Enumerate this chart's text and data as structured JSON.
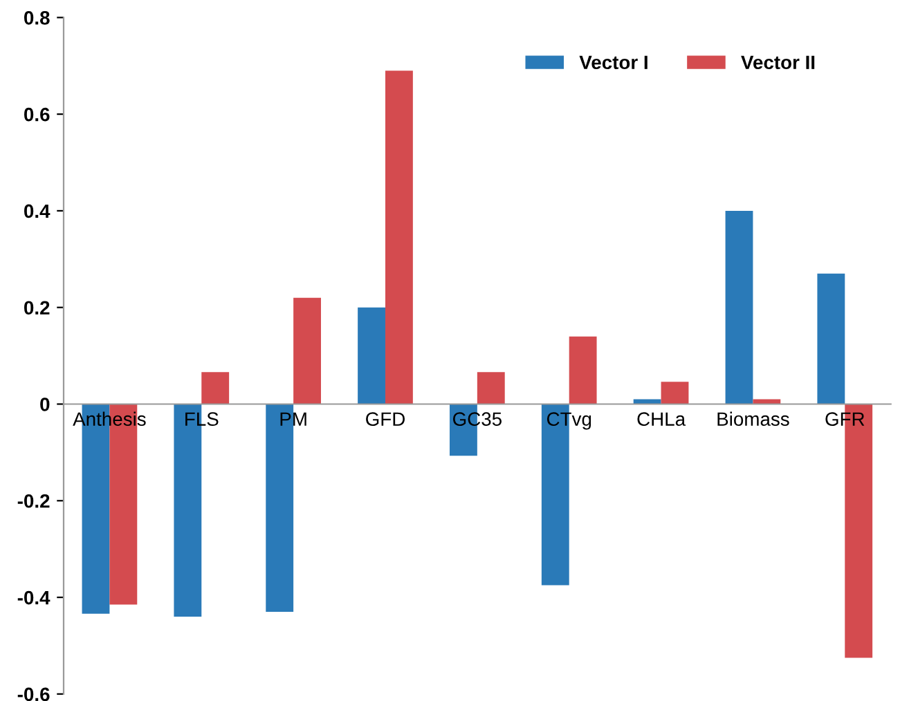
{
  "chart_data": {
    "type": "bar",
    "categories": [
      "Anthesis",
      "FLS",
      "PM",
      "GFD",
      "GC35",
      "CTvg",
      "CHLa",
      "Biomass",
      "GFR"
    ],
    "series": [
      {
        "name": "Vector I",
        "color": "#2a7ab8",
        "values": [
          -0.434,
          -0.44,
          -0.43,
          0.2,
          -0.107,
          -0.375,
          0.01,
          0.4,
          0.27
        ]
      },
      {
        "name": "Vector II",
        "color": "#d44b4f",
        "values": [
          -0.415,
          0.066,
          0.22,
          0.69,
          0.066,
          0.14,
          0.046,
          0.01,
          -0.525
        ]
      }
    ],
    "ylim": [
      -0.6,
      0.8
    ],
    "yticks": [
      -0.6,
      -0.4,
      -0.2,
      0,
      0.2,
      0.4,
      0.6,
      0.8
    ],
    "grid": false,
    "legend": "top right"
  }
}
